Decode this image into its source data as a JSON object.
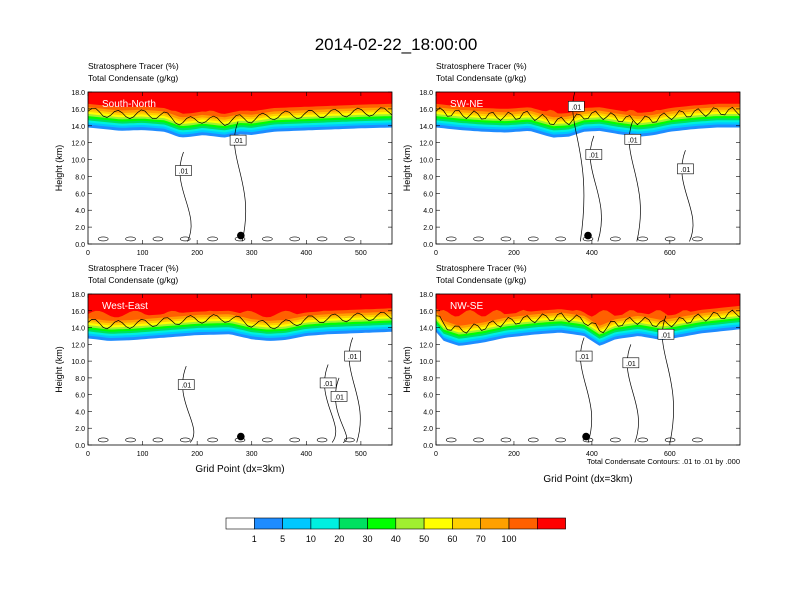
{
  "main_title": "2014-02-22_18:00:00",
  "footnote": "Total Condensate Contours: .01 to .01 by .000",
  "colors": {
    "scale": [
      "#ffffff",
      "#1e8cff",
      "#00c8ff",
      "#00f0e0",
      "#00e060",
      "#00ff00",
      "#a0f030",
      "#ffff00",
      "#ffd000",
      "#ffa000",
      "#ff6000",
      "#ff0000"
    ],
    "contour": "#000000",
    "frame": "#000000"
  },
  "chart_data": [
    {
      "type": "heatmap",
      "label_left": "Stratosphere Tracer   (%)",
      "label_left2": "Total Condensate   (g/kg)",
      "panel_label": "South-North",
      "xlabel": "",
      "ylabel": "Height (km)",
      "xlim": [
        0,
        557
      ],
      "ylim": [
        0,
        18
      ],
      "xticks": [
        0,
        100,
        200,
        300,
        400,
        500
      ],
      "yticks": [
        "0.0",
        "2.0",
        "4.0",
        "6.0",
        "8.0",
        "10.0",
        "12.0",
        "14.0",
        "16.0",
        "18.0"
      ],
      "bands": {
        "x": [
          0,
          30,
          60,
          100,
          140,
          170,
          190,
          210,
          250,
          280,
          300,
          340,
          380,
          420,
          460,
          500,
          557
        ],
        "top_of_band_km": [
          13.8,
          13.6,
          13.4,
          13.5,
          13.3,
          12.6,
          12.7,
          12.9,
          12.6,
          13.0,
          12.9,
          13.3,
          13.4,
          13.5,
          13.6,
          13.7,
          13.8
        ],
        "tracer_floor_km": 15.4
      },
      "contour_labels": [
        {
          "x": 275,
          "y": 12.3,
          "text": ".01"
        },
        {
          "x": 175,
          "y": 8.7,
          "text": ".01"
        }
      ],
      "marker": {
        "x": 280,
        "y": 1.0
      }
    },
    {
      "type": "heatmap",
      "label_left": "Stratosphere Tracer   (%)",
      "label_left2": "Total Condensate   (g/kg)",
      "panel_label": "SW-NE",
      "xlabel": "",
      "ylabel": "Height (km)",
      "xlim": [
        0,
        780
      ],
      "ylim": [
        0,
        18
      ],
      "xticks": [
        0,
        200,
        400,
        600
      ],
      "yticks": [
        "0.0",
        "2.0",
        "4.0",
        "6.0",
        "8.0",
        "10.0",
        "12.0",
        "14.0",
        "16.0",
        "18.0"
      ],
      "bands": {
        "x": [
          0,
          60,
          120,
          180,
          240,
          300,
          340,
          380,
          420,
          470,
          520,
          560,
          600,
          660,
          720,
          780
        ],
        "top_of_band_km": [
          13.8,
          13.5,
          13.3,
          13.2,
          13.4,
          12.6,
          12.7,
          13.3,
          13.4,
          13.0,
          12.7,
          12.9,
          13.3,
          13.6,
          13.8,
          13.8
        ],
        "tracer_floor_km": 15.5
      },
      "contour_labels": [
        {
          "x": 405,
          "y": 10.6,
          "text": ".01"
        },
        {
          "x": 505,
          "y": 12.4,
          "text": ".01"
        },
        {
          "x": 640,
          "y": 8.9,
          "text": ".01"
        },
        {
          "x": 360,
          "y": 16.3,
          "text": ".01"
        }
      ],
      "marker": {
        "x": 390,
        "y": 1.0
      }
    },
    {
      "type": "heatmap",
      "label_left": "Stratosphere Tracer   (%)",
      "label_left2": "Total Condensate   (g/kg)",
      "panel_label": "West-East",
      "xlabel": "Grid Point (dx=3km)",
      "ylabel": "Height (km)",
      "xlim": [
        0,
        557
      ],
      "ylim": [
        0,
        18
      ],
      "xticks": [
        0,
        100,
        200,
        300,
        400,
        500
      ],
      "yticks": [
        "0.0",
        "2.0",
        "4.0",
        "6.0",
        "8.0",
        "10.0",
        "12.0",
        "14.0",
        "16.0",
        "18.0"
      ],
      "bands": {
        "x": [
          0,
          40,
          80,
          140,
          200,
          260,
          300,
          330,
          360,
          400,
          440,
          480,
          520,
          557
        ],
        "top_of_band_km": [
          12.7,
          12.4,
          12.5,
          12.8,
          13.1,
          13.2,
          12.6,
          12.4,
          12.5,
          13.0,
          13.2,
          13.3,
          13.4,
          13.5
        ],
        "tracer_floor_km": 15.6
      },
      "contour_labels": [
        {
          "x": 485,
          "y": 10.6,
          "text": ".01"
        },
        {
          "x": 180,
          "y": 7.2,
          "text": ".01"
        },
        {
          "x": 440,
          "y": 7.4,
          "text": ".01"
        },
        {
          "x": 460,
          "y": 5.8,
          "text": ".01"
        }
      ],
      "marker": {
        "x": 280,
        "y": 1.0
      }
    },
    {
      "type": "heatmap",
      "label_left": "Stratosphere Tracer   (%)",
      "label_left2": "Total Condensate   (g/kg)",
      "panel_label": "NW-SE",
      "xlabel": "Grid Point (dx=3km)",
      "ylabel": "Height (km)",
      "xlim": [
        0,
        780
      ],
      "ylim": [
        0,
        18
      ],
      "xticks": [
        0,
        200,
        400,
        600
      ],
      "yticks": [
        "0.0",
        "2.0",
        "4.0",
        "6.0",
        "8.0",
        "10.0",
        "12.0",
        "14.0",
        "16.0",
        "18.0"
      ],
      "bands": {
        "x": [
          0,
          20,
          60,
          120,
          180,
          260,
          320,
          380,
          420,
          460,
          520,
          580,
          620,
          680,
          740,
          780
        ],
        "top_of_band_km": [
          13.5,
          12.4,
          11.8,
          12.2,
          12.8,
          13.2,
          13.4,
          13.0,
          11.8,
          12.6,
          13.0,
          12.5,
          12.8,
          13.3,
          13.6,
          13.8
        ],
        "tracer_floor_km": 15.7
      },
      "contour_labels": [
        {
          "x": 380,
          "y": 10.6,
          "text": ".01"
        },
        {
          "x": 500,
          "y": 9.8,
          "text": ".01"
        },
        {
          "x": 590,
          "y": 13.2,
          "text": ".01"
        }
      ],
      "marker": {
        "x": 385,
        "y": 1.0
      }
    }
  ],
  "colorbar": {
    "labels": [
      "1",
      "5",
      "10",
      "20",
      "30",
      "40",
      "50",
      "60",
      "70",
      "100"
    ]
  }
}
